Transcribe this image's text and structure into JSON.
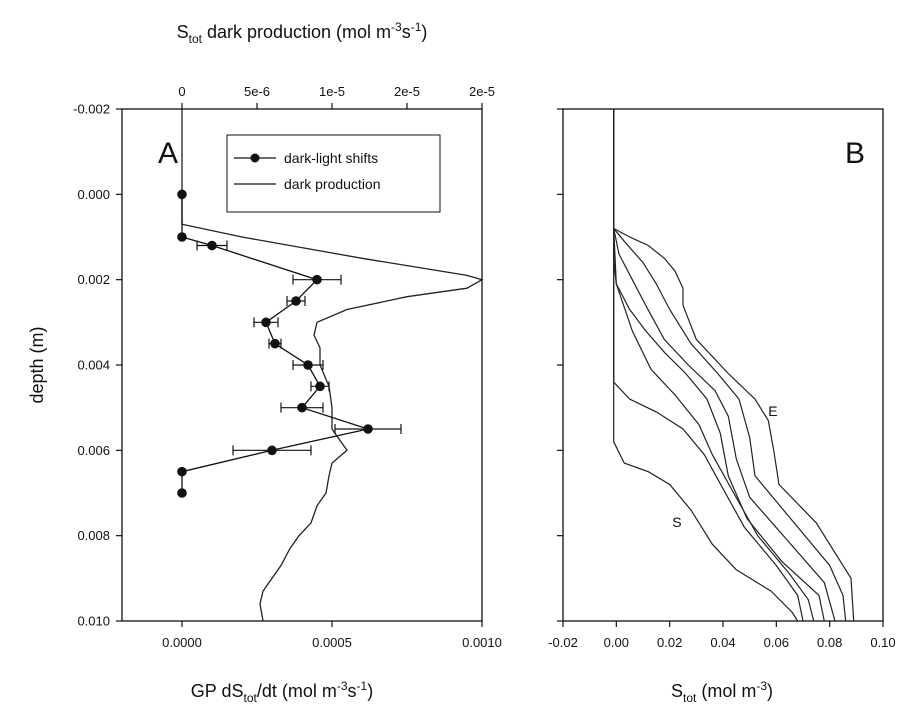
{
  "chart_data": [
    {
      "panel": "A",
      "type": "line",
      "panel_label": "A",
      "y_axis": {
        "label": "depth (m)",
        "ylim": [
          -0.002,
          0.01
        ],
        "inverted": true,
        "ticks": [
          -0.002,
          0.0,
          0.002,
          0.004,
          0.006,
          0.008,
          0.01
        ],
        "tick_labels": [
          "-0.002",
          "0.000",
          "0.002",
          "0.004",
          "0.006",
          "0.008",
          "0.010"
        ]
      },
      "x_bottom": {
        "label_parts": [
          "GP dS",
          "tot",
          "/dt (mol m",
          "-3",
          "s",
          "-1",
          ")"
        ],
        "xlim": [
          -0.0002,
          0.001
        ],
        "ticks": [
          0.0,
          0.0005,
          0.001
        ],
        "tick_labels": [
          "0.0000",
          "0.0005",
          "0.0010"
        ]
      },
      "x_top": {
        "label_parts": [
          "S",
          "tot",
          " dark production (mol m",
          "-3",
          "s",
          "-1",
          ")"
        ],
        "xlim": [
          -4e-06,
          2e-05
        ],
        "ticks": [
          0,
          5e-06,
          1e-05,
          1.5e-05,
          2e-05
        ],
        "tick_labels": [
          "0",
          "5e-6",
          "1e-5",
          "2e-5",
          "2e-5"
        ]
      },
      "legend": {
        "placement": "top-right",
        "items": [
          "dark-light shifts",
          "dark production"
        ]
      },
      "series": [
        {
          "name": "dark-light shifts",
          "axis": "bottom",
          "marker": "circle",
          "points": [
            {
              "x": 0.0,
              "y": 0.0,
              "err": 0
            },
            {
              "x": 0.0,
              "y": 0.001,
              "err": 0
            },
            {
              "x": 0.0001,
              "y": 0.0012,
              "err": 5e-05
            },
            {
              "x": 0.00045,
              "y": 0.002,
              "err": 8e-05
            },
            {
              "x": 0.00038,
              "y": 0.0025,
              "err": 3e-05
            },
            {
              "x": 0.00028,
              "y": 0.003,
              "err": 4e-05
            },
            {
              "x": 0.00031,
              "y": 0.0035,
              "err": 2e-05
            },
            {
              "x": 0.00042,
              "y": 0.004,
              "err": 5e-05
            },
            {
              "x": 0.00046,
              "y": 0.0045,
              "err": 3e-05
            },
            {
              "x": 0.0004,
              "y": 0.005,
              "err": 7e-05
            },
            {
              "x": 0.00062,
              "y": 0.0055,
              "err": 0.00011
            },
            {
              "x": 0.0003,
              "y": 0.006,
              "err": 0.00013
            },
            {
              "x": 0.0,
              "y": 0.0065,
              "err": 0
            },
            {
              "x": 0.0,
              "y": 0.007,
              "err": 0
            }
          ]
        },
        {
          "name": "dark production",
          "axis": "top",
          "points": [
            {
              "x": 0.0,
              "y": -0.002
            },
            {
              "x": 0.0,
              "y": 0.0005
            },
            {
              "x": 0.0,
              "y": 0.0007
            },
            {
              "x": 4e-06,
              "y": 0.001
            },
            {
              "x": 1.2e-05,
              "y": 0.0015
            },
            {
              "x": 1.9e-05,
              "y": 0.0019
            },
            {
              "x": 2e-05,
              "y": 0.002
            },
            {
              "x": 1.9e-05,
              "y": 0.0022
            },
            {
              "x": 1.5e-05,
              "y": 0.0024
            },
            {
              "x": 1.1e-05,
              "y": 0.0027
            },
            {
              "x": 9e-06,
              "y": 0.003
            },
            {
              "x": 8.8e-06,
              "y": 0.0033
            },
            {
              "x": 9.2e-06,
              "y": 0.0036
            },
            {
              "x": 9.2e-06,
              "y": 0.004
            },
            {
              "x": 9.8e-06,
              "y": 0.0045
            },
            {
              "x": 1e-05,
              "y": 0.005
            },
            {
              "x": 1e-05,
              "y": 0.0055
            },
            {
              "x": 1.1e-05,
              "y": 0.006
            },
            {
              "x": 1e-05,
              "y": 0.0063
            },
            {
              "x": 9.8e-06,
              "y": 0.0066
            },
            {
              "x": 9.6e-06,
              "y": 0.007
            },
            {
              "x": 9e-06,
              "y": 0.0073
            },
            {
              "x": 8.6e-06,
              "y": 0.0077
            },
            {
              "x": 7.8e-06,
              "y": 0.008
            },
            {
              "x": 7.2e-06,
              "y": 0.0083
            },
            {
              "x": 6.6e-06,
              "y": 0.0087
            },
            {
              "x": 6e-06,
              "y": 0.009
            },
            {
              "x": 5.4e-06,
              "y": 0.0093
            },
            {
              "x": 5.2e-06,
              "y": 0.0096
            },
            {
              "x": 5.4e-06,
              "y": 0.01
            }
          ]
        }
      ]
    },
    {
      "panel": "B",
      "type": "line",
      "panel_label": "B",
      "y_axis": {
        "ylim": [
          -0.002,
          0.01
        ],
        "inverted": true,
        "ticks": [
          -0.002,
          0.0,
          0.002,
          0.004,
          0.006,
          0.008,
          0.01
        ]
      },
      "x_bottom": {
        "label_parts": [
          "S",
          "tot",
          " (mol m",
          "-3",
          ")"
        ],
        "xlim": [
          -0.02,
          0.1
        ],
        "ticks": [
          -0.02,
          0.0,
          0.02,
          0.04,
          0.06,
          0.08,
          0.1
        ],
        "tick_labels": [
          "-0.02",
          "0.00",
          "0.02",
          "0.04",
          "0.06",
          "0.08",
          "0.10"
        ]
      },
      "annotations": [
        {
          "text": "E",
          "x": 0.057,
          "y": 0.0052
        },
        {
          "text": "S",
          "x": 0.021,
          "y": 0.0078
        }
      ],
      "series": [
        {
          "name": "S",
          "points": [
            [
              -0.001,
              -0.002
            ],
            [
              -0.001,
              0.0015
            ],
            [
              -0.001,
              0.0058
            ],
            [
              0.003,
              0.0063
            ],
            [
              0.012,
              0.0065
            ],
            [
              0.02,
              0.0068
            ],
            [
              0.028,
              0.0074
            ],
            [
              0.036,
              0.0082
            ],
            [
              0.045,
              0.0088
            ],
            [
              0.058,
              0.0093
            ],
            [
              0.066,
              0.0098
            ],
            [
              0.068,
              0.01
            ]
          ]
        },
        {
          "points": [
            [
              -0.001,
              -0.002
            ],
            [
              -0.001,
              0.0015
            ],
            [
              -0.001,
              0.0044
            ],
            [
              0.005,
              0.0048
            ],
            [
              0.015,
              0.0051
            ],
            [
              0.025,
              0.0055
            ],
            [
              0.033,
              0.0061
            ],
            [
              0.04,
              0.0069
            ],
            [
              0.048,
              0.0078
            ],
            [
              0.06,
              0.0087
            ],
            [
              0.068,
              0.0094
            ],
            [
              0.07,
              0.01
            ]
          ]
        },
        {
          "points": [
            [
              -0.001,
              -0.002
            ],
            [
              -0.001,
              0.0015
            ],
            [
              0.0,
              0.0021
            ],
            [
              0.006,
              0.0032
            ],
            [
              0.013,
              0.0041
            ],
            [
              0.022,
              0.0047
            ],
            [
              0.031,
              0.0054
            ],
            [
              0.036,
              0.0061
            ],
            [
              0.044,
              0.007
            ],
            [
              0.053,
              0.008
            ],
            [
              0.065,
              0.0089
            ],
            [
              0.072,
              0.0095
            ],
            [
              0.074,
              0.01
            ]
          ]
        },
        {
          "points": [
            [
              -0.001,
              -0.002
            ],
            [
              -0.001,
              0.0008
            ],
            [
              0.0,
              0.0021
            ],
            [
              0.005,
              0.0027
            ],
            [
              0.011,
              0.0032
            ],
            [
              0.018,
              0.0037
            ],
            [
              0.026,
              0.0042
            ],
            [
              0.034,
              0.0048
            ],
            [
              0.039,
              0.0056
            ],
            [
              0.042,
              0.0066
            ],
            [
              0.049,
              0.0076
            ],
            [
              0.062,
              0.0086
            ],
            [
              0.076,
              0.0094
            ],
            [
              0.078,
              0.01
            ]
          ]
        },
        {
          "points": [
            [
              -0.001,
              -0.002
            ],
            [
              -0.001,
              0.0008
            ],
            [
              0.001,
              0.0014
            ],
            [
              0.006,
              0.002
            ],
            [
              0.011,
              0.0026
            ],
            [
              0.018,
              0.0034
            ],
            [
              0.027,
              0.004
            ],
            [
              0.037,
              0.0046
            ],
            [
              0.042,
              0.0052
            ],
            [
              0.045,
              0.0062
            ],
            [
              0.05,
              0.0071
            ],
            [
              0.064,
              0.0081
            ],
            [
              0.078,
              0.0091
            ],
            [
              0.082,
              0.01
            ]
          ]
        },
        {
          "points": [
            [
              -0.001,
              -0.002
            ],
            [
              -0.001,
              0.0008
            ],
            [
              0.003,
              0.0011
            ],
            [
              0.01,
              0.0016
            ],
            [
              0.015,
              0.0021
            ],
            [
              0.02,
              0.0027
            ],
            [
              0.028,
              0.0035
            ],
            [
              0.038,
              0.0042
            ],
            [
              0.046,
              0.0048
            ],
            [
              0.05,
              0.0057
            ],
            [
              0.052,
              0.0066
            ],
            [
              0.068,
              0.0078
            ],
            [
              0.08,
              0.0087
            ],
            [
              0.085,
              0.0094
            ],
            [
              0.086,
              0.01
            ]
          ]
        },
        {
          "name": "E",
          "points": [
            [
              -0.001,
              -0.002
            ],
            [
              -0.001,
              0.0008
            ],
            [
              0.005,
              0.001
            ],
            [
              0.012,
              0.0012
            ],
            [
              0.018,
              0.0015
            ],
            [
              0.022,
              0.0018
            ],
            [
              0.025,
              0.0022
            ],
            [
              0.025,
              0.0026
            ],
            [
              0.03,
              0.0034
            ],
            [
              0.042,
              0.0042
            ],
            [
              0.052,
              0.0048
            ],
            [
              0.057,
              0.0053
            ],
            [
              0.059,
              0.006
            ],
            [
              0.061,
              0.0068
            ],
            [
              0.075,
              0.0077
            ],
            [
              0.088,
              0.009
            ],
            [
              0.089,
              0.01
            ]
          ]
        }
      ]
    }
  ]
}
